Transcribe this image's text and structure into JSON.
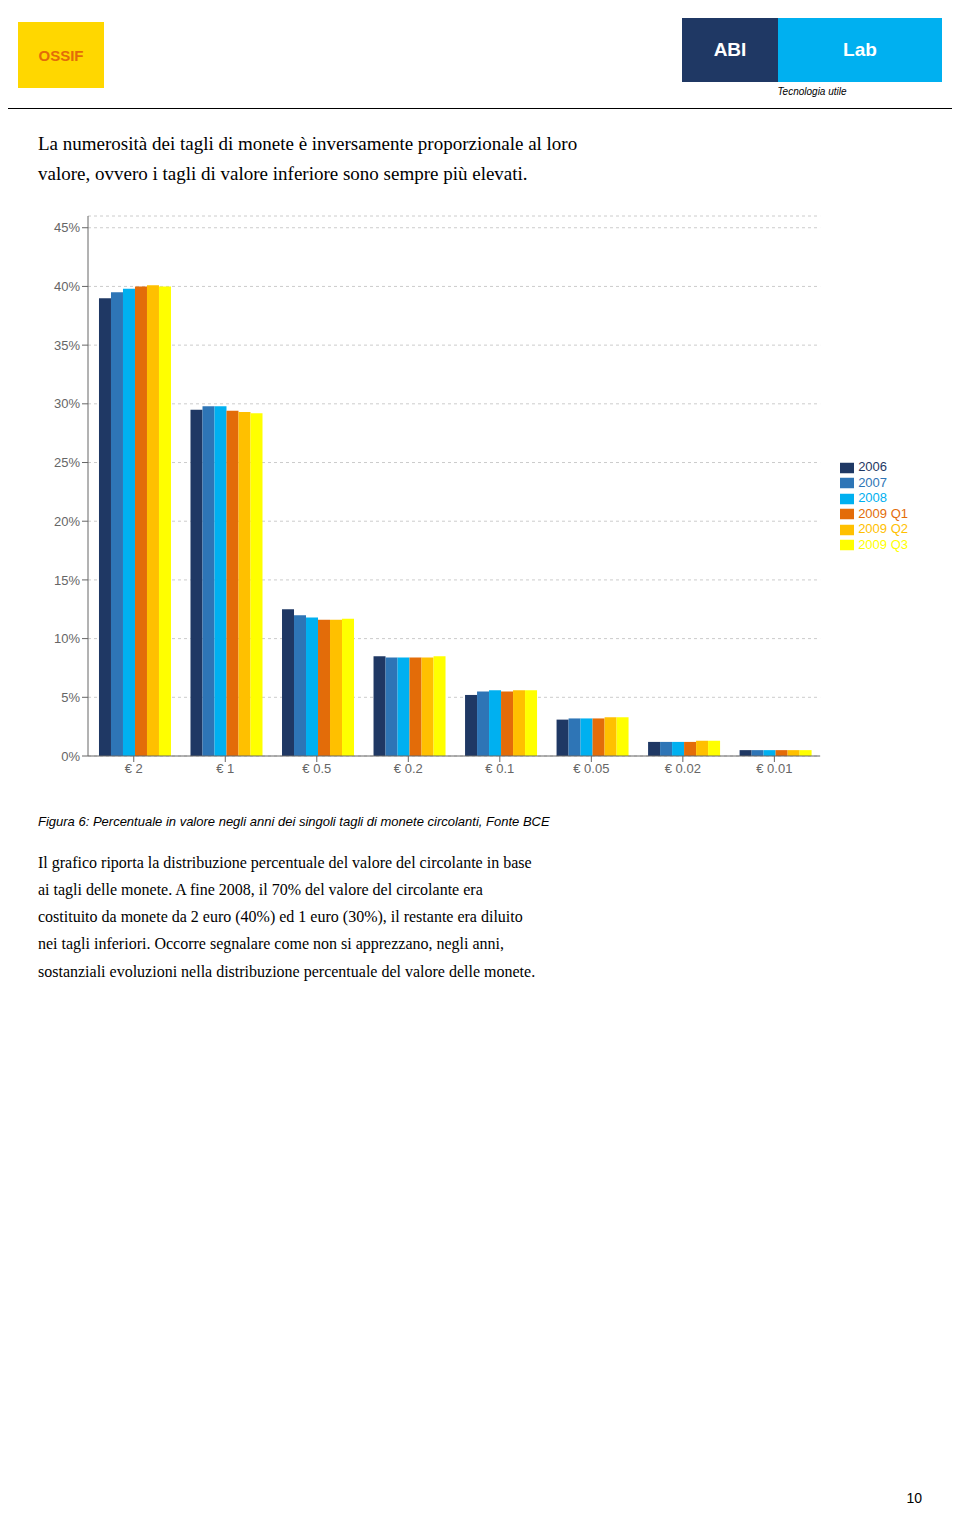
{
  "chart_data": {
    "type": "bar",
    "title": "Figura 6: Percentuale in valore negli anni dei singoli tagli di monete circolanti, Fonte BCE",
    "annotations": [
      "OSSIF",
      "ABI",
      "Lab",
      "Tecnologia utile",
      "La numerosità dei tagli di monete è inversamente proporzionale al loro\nvalore, ovvero i tagli di valore inferiore sono sempre più elevati.",
      "Il grafico riporta la distribuzione percentuale del valore del circolante in base\nai tagli delle monete. A fine 2008, il 70% del valore del circolante era\ncostituito da monete da 2 euro (40%) ed 1 euro (30%), il restante era diluito\nnei tagli inferiori. Occorre segnalare come non si apprezzano, negli anni,\nsostanziali evoluzioni nella distribuzione percentuale del valore delle monete.",
      "10"
    ],
    "categories": [
      "€ 2",
      "€ 1",
      "€ 0.5",
      "€ 0.2",
      "€ 0.1",
      "€ 0.05",
      "€ 0.02",
      "€ 0.01"
    ],
    "series": [
      {
        "name": "2006",
        "color": "#1F3864",
        "values": [
          0.39,
          0.295,
          0.125,
          0.085,
          0.052,
          0.031,
          0.012,
          0.005
        ]
      },
      {
        "name": "2007",
        "color": "#2E75B6",
        "values": [
          0.395,
          0.298,
          0.12,
          0.084,
          0.055,
          0.032,
          0.012,
          0.005
        ]
      },
      {
        "name": "2008",
        "color": "#00B0F0",
        "values": [
          0.398,
          0.298,
          0.118,
          0.084,
          0.056,
          0.032,
          0.012,
          0.005
        ]
      },
      {
        "name": "2009 Q1",
        "color": "#E36C09",
        "values": [
          0.4,
          0.294,
          0.116,
          0.084,
          0.055,
          0.032,
          0.012,
          0.005
        ]
      },
      {
        "name": "2009 Q2",
        "color": "#FFC000",
        "values": [
          0.401,
          0.293,
          0.116,
          0.084,
          0.056,
          0.033,
          0.013,
          0.005
        ]
      },
      {
        "name": "2009 Q3",
        "color": "#FFFF00",
        "values": [
          0.4,
          0.292,
          0.117,
          0.085,
          0.056,
          0.033,
          0.013,
          0.005
        ]
      }
    ],
    "ylim": [
      0,
      0.46
    ],
    "yticks": [
      {
        "value": 0,
        "label": "0%"
      },
      {
        "value": 0.05,
        "label": "5%"
      },
      {
        "value": 0.1,
        "label": "10%"
      },
      {
        "value": 0.15,
        "label": "15%"
      },
      {
        "value": 0.2,
        "label": "20%"
      },
      {
        "value": 0.25,
        "label": "25%"
      },
      {
        "value": 0.3,
        "label": "30%"
      },
      {
        "value": 0.35,
        "label": "35%"
      },
      {
        "value": 0.4,
        "label": "40%"
      },
      {
        "value": 0.45,
        "label": "45%"
      }
    ],
    "grid": true,
    "legend": "right"
  }
}
